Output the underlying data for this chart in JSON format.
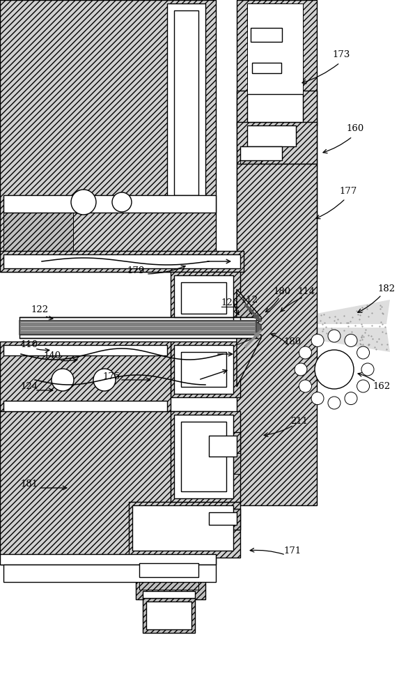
{
  "bg_color": "#ffffff",
  "figsize": [
    5.96,
    10.0
  ],
  "dpi": 100,
  "hatch_color": "#888888",
  "hatch_fc": "#d8d8d8",
  "line_color": "#000000"
}
